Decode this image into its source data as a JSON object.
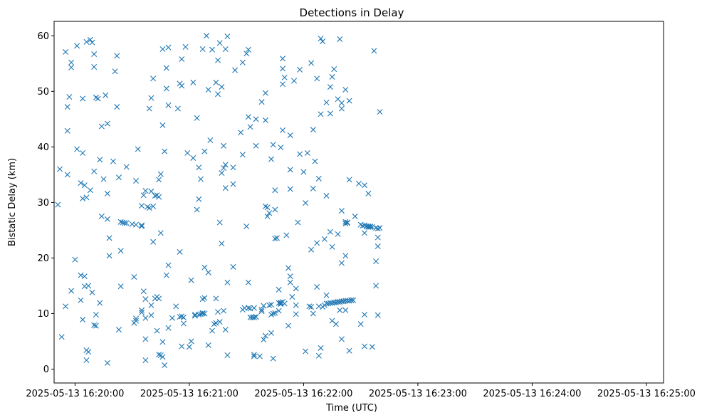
{
  "chart_data": {
    "type": "scatter",
    "title": "Detections in Delay",
    "xlabel": "Time (UTC)",
    "ylabel": "Bistatic Delay (km)",
    "marker": "x",
    "color": "#1f77b4",
    "grid": false,
    "x_unit": "time of day (UTC) on 2025-05-13, HH:MM:SS",
    "xlim": [
      "16:19:49",
      "16:25:09"
    ],
    "ylim": [
      -2.5,
      62.6
    ],
    "x_ticks": [
      "16:20:00",
      "16:21:00",
      "16:22:00",
      "16:23:00",
      "16:24:00",
      "16:25:00"
    ],
    "x_tick_labels": [
      "2025-05-13 16:20:00",
      "2025-05-13 16:21:00",
      "2025-05-13 16:22:00",
      "2025-05-13 16:23:00",
      "2025-05-13 16:24:00",
      "2025-05-13 16:25:00"
    ],
    "y_ticks": [
      0,
      10,
      20,
      30,
      40,
      50,
      60
    ],
    "points": [
      [
        "16:19:51",
        29.6
      ],
      [
        "16:19:52",
        36.0
      ],
      [
        "16:19:53",
        5.8
      ],
      [
        "16:19:55",
        57.1
      ],
      [
        "16:19:55",
        11.3
      ],
      [
        "16:19:56",
        47.2
      ],
      [
        "16:19:56",
        35.0
      ],
      [
        "16:19:56",
        42.9
      ],
      [
        "16:19:57",
        49.0
      ],
      [
        "16:19:58",
        55.2
      ],
      [
        "16:19:58",
        54.3
      ],
      [
        "16:19:58",
        14.1
      ],
      [
        "16:20:00",
        19.7
      ],
      [
        "16:20:01",
        58.2
      ],
      [
        "16:20:01",
        39.6
      ],
      [
        "16:20:03",
        33.5
      ],
      [
        "16:20:03",
        16.9
      ],
      [
        "16:20:03",
        12.4
      ],
      [
        "16:20:04",
        48.7
      ],
      [
        "16:20:04",
        38.9
      ],
      [
        "16:20:04",
        30.7
      ],
      [
        "16:20:04",
        8.9
      ],
      [
        "16:20:05",
        33.1
      ],
      [
        "16:20:05",
        16.7
      ],
      [
        "16:20:05",
        14.9
      ],
      [
        "16:20:06",
        58.9
      ],
      [
        "16:20:06",
        3.4
      ],
      [
        "16:20:06",
        1.6
      ],
      [
        "16:20:06",
        30.9
      ],
      [
        "16:20:07",
        15.0
      ],
      [
        "16:20:07",
        3.1
      ],
      [
        "16:20:08",
        59.3
      ],
      [
        "16:20:08",
        32.2
      ],
      [
        "16:20:09",
        13.8
      ],
      [
        "16:20:09",
        58.8
      ],
      [
        "16:20:10",
        56.7
      ],
      [
        "16:20:10",
        54.4
      ],
      [
        "16:20:10",
        35.6
      ],
      [
        "16:20:10",
        7.9
      ],
      [
        "16:20:11",
        48.9
      ],
      [
        "16:20:11",
        9.8
      ],
      [
        "16:20:11",
        7.8
      ],
      [
        "16:20:12",
        48.7
      ],
      [
        "16:20:13",
        37.7
      ],
      [
        "16:20:13",
        11.9
      ],
      [
        "16:20:14",
        43.7
      ],
      [
        "16:20:14",
        27.5
      ],
      [
        "16:20:15",
        34.2
      ],
      [
        "16:20:16",
        49.3
      ],
      [
        "16:20:17",
        44.2
      ],
      [
        "16:20:17",
        27.0
      ],
      [
        "16:20:17",
        1.1
      ],
      [
        "16:20:17",
        31.6
      ],
      [
        "16:20:18",
        23.6
      ],
      [
        "16:20:18",
        20.4
      ],
      [
        "16:20:20",
        37.4
      ],
      [
        "16:20:21",
        53.6
      ],
      [
        "16:20:22",
        56.4
      ],
      [
        "16:20:22",
        47.2
      ],
      [
        "16:20:23",
        34.5
      ],
      [
        "16:20:23",
        7.1
      ],
      [
        "16:20:24",
        26.5
      ],
      [
        "16:20:24",
        21.3
      ],
      [
        "16:20:24",
        14.9
      ],
      [
        "16:20:25",
        26.4
      ],
      [
        "16:20:26",
        26.3
      ],
      [
        "16:20:27",
        26.3
      ],
      [
        "16:20:27",
        36.4
      ],
      [
        "16:20:30",
        26.1
      ],
      [
        "16:20:31",
        16.6
      ],
      [
        "16:20:31",
        8.3
      ],
      [
        "16:20:32",
        8.7
      ],
      [
        "16:20:32",
        9.1
      ],
      [
        "16:20:32",
        33.9
      ],
      [
        "16:20:32",
        26.0
      ],
      [
        "16:20:33",
        39.6
      ],
      [
        "16:20:35",
        29.4
      ],
      [
        "16:20:35",
        25.9
      ],
      [
        "16:20:35",
        25.7
      ],
      [
        "16:20:35",
        10.6
      ],
      [
        "16:20:35",
        10.2
      ],
      [
        "16:20:36",
        31.3
      ],
      [
        "16:20:36",
        14.0
      ],
      [
        "16:20:37",
        32.1
      ],
      [
        "16:20:37",
        12.6
      ],
      [
        "16:20:37",
        9.2
      ],
      [
        "16:20:37",
        5.4
      ],
      [
        "16:20:37",
        1.6
      ],
      [
        "16:20:38",
        29.2
      ],
      [
        "16:20:39",
        46.9
      ],
      [
        "16:20:39",
        29.0
      ],
      [
        "16:20:40",
        48.8
      ],
      [
        "16:20:40",
        32.0
      ],
      [
        "16:20:40",
        11.5
      ],
      [
        "16:20:40",
        9.7
      ],
      [
        "16:20:41",
        52.3
      ],
      [
        "16:20:41",
        29.3
      ],
      [
        "16:20:41",
        22.9
      ],
      [
        "16:20:42",
        31.2
      ],
      [
        "16:20:42",
        12.7
      ],
      [
        "16:20:43",
        31.3
      ],
      [
        "16:20:43",
        13.0
      ],
      [
        "16:20:43",
        6.9
      ],
      [
        "16:20:44",
        34.1
      ],
      [
        "16:20:44",
        31.0
      ],
      [
        "16:20:44",
        12.7
      ],
      [
        "16:20:44",
        2.6
      ],
      [
        "16:20:45",
        35.1
      ],
      [
        "16:20:45",
        24.5
      ],
      [
        "16:20:45",
        2.5
      ],
      [
        "16:20:46",
        4.9
      ],
      [
        "16:20:46",
        57.6
      ],
      [
        "16:20:46",
        43.9
      ],
      [
        "16:20:46",
        2.2
      ],
      [
        "16:20:47",
        39.2
      ],
      [
        "16:20:47",
        0.7
      ],
      [
        "16:20:48",
        54.2
      ],
      [
        "16:20:48",
        50.5
      ],
      [
        "16:20:48",
        16.9
      ],
      [
        "16:20:49",
        57.9
      ],
      [
        "16:20:49",
        47.5
      ],
      [
        "16:20:49",
        18.7
      ],
      [
        "16:20:49",
        7.4
      ],
      [
        "16:20:51",
        9.2
      ],
      [
        "16:20:53",
        11.3
      ],
      [
        "16:20:54",
        46.9
      ],
      [
        "16:20:55",
        51.4
      ],
      [
        "16:20:55",
        21.1
      ],
      [
        "16:20:55",
        9.4
      ],
      [
        "16:20:56",
        55.8
      ],
      [
        "16:20:56",
        51.0
      ],
      [
        "16:20:56",
        9.5
      ],
      [
        "16:20:56",
        4.1
      ],
      [
        "16:20:57",
        8.2
      ],
      [
        "16:20:57",
        9.3
      ],
      [
        "16:20:58",
        58.0
      ],
      [
        "16:20:59",
        38.9
      ],
      [
        "16:21:00",
        4.0
      ],
      [
        "16:21:01",
        5.0
      ],
      [
        "16:21:01",
        16.0
      ],
      [
        "16:21:02",
        51.6
      ],
      [
        "16:21:02",
        38.0
      ],
      [
        "16:21:03",
        9.8
      ],
      [
        "16:21:03",
        9.6
      ],
      [
        "16:21:04",
        45.2
      ],
      [
        "16:21:04",
        28.7
      ],
      [
        "16:21:05",
        36.3
      ],
      [
        "16:21:05",
        30.6
      ],
      [
        "16:21:05",
        9.8
      ],
      [
        "16:21:06",
        34.2
      ],
      [
        "16:21:06",
        9.9
      ],
      [
        "16:21:07",
        57.6
      ],
      [
        "16:21:07",
        12.6
      ],
      [
        "16:21:07",
        10.1
      ],
      [
        "16:21:07",
        10.0
      ],
      [
        "16:21:08",
        39.2
      ],
      [
        "16:21:08",
        18.3
      ],
      [
        "16:21:08",
        12.8
      ],
      [
        "16:21:08",
        10.0
      ],
      [
        "16:21:09",
        60.0
      ],
      [
        "16:21:10",
        50.3
      ],
      [
        "16:21:10",
        4.3
      ],
      [
        "16:21:10",
        17.4
      ],
      [
        "16:21:11",
        41.2
      ],
      [
        "16:21:12",
        57.5
      ],
      [
        "16:21:12",
        6.9
      ],
      [
        "16:21:13",
        8.1
      ],
      [
        "16:21:14",
        8.3
      ],
      [
        "16:21:14",
        12.7
      ],
      [
        "16:21:14",
        51.6
      ],
      [
        "16:21:15",
        49.5
      ],
      [
        "16:21:15",
        55.6
      ],
      [
        "16:21:15",
        10.3
      ],
      [
        "16:21:16",
        26.4
      ],
      [
        "16:21:16",
        8.5
      ],
      [
        "16:21:16",
        58.7
      ],
      [
        "16:21:17",
        50.8
      ],
      [
        "16:21:17",
        22.6
      ],
      [
        "16:21:17",
        35.3
      ],
      [
        "16:21:18",
        10.5
      ],
      [
        "16:21:18",
        40.2
      ],
      [
        "16:21:18",
        36.2
      ],
      [
        "16:21:19",
        32.6
      ],
      [
        "16:21:19",
        36.8
      ],
      [
        "16:21:19",
        57.6
      ],
      [
        "16:21:19",
        7.1
      ],
      [
        "16:21:20",
        2.5
      ],
      [
        "16:21:20",
        59.9
      ],
      [
        "16:21:20",
        15.6
      ],
      [
        "16:21:23",
        33.3
      ],
      [
        "16:21:23",
        18.4
      ],
      [
        "16:21:23",
        36.3
      ],
      [
        "16:21:24",
        53.8
      ],
      [
        "16:21:27",
        42.6
      ],
      [
        "16:21:28",
        55.2
      ],
      [
        "16:21:28",
        38.6
      ],
      [
        "16:21:28",
        10.7
      ],
      [
        "16:21:29",
        11.0
      ],
      [
        "16:21:30",
        56.8
      ],
      [
        "16:21:30",
        25.7
      ],
      [
        "16:21:31",
        57.5
      ],
      [
        "16:21:31",
        45.4
      ],
      [
        "16:21:31",
        15.6
      ],
      [
        "16:21:31",
        11.0
      ],
      [
        "16:21:32",
        43.6
      ],
      [
        "16:21:32",
        9.3
      ],
      [
        "16:21:32",
        10.9
      ],
      [
        "16:21:33",
        9.3
      ],
      [
        "16:21:34",
        9.3
      ],
      [
        "16:21:34",
        2.6
      ],
      [
        "16:21:34",
        2.3
      ],
      [
        "16:21:34",
        11.0
      ],
      [
        "16:21:34",
        9.3
      ],
      [
        "16:21:35",
        45.0
      ],
      [
        "16:21:35",
        40.2
      ],
      [
        "16:21:35",
        9.4
      ],
      [
        "16:21:35",
        9.4
      ],
      [
        "16:21:37",
        2.3
      ],
      [
        "16:21:38",
        48.1
      ],
      [
        "16:21:38",
        10.4
      ],
      [
        "16:21:38",
        10.7
      ],
      [
        "16:21:39",
        11.4
      ],
      [
        "16:21:39",
        5.3
      ],
      [
        "16:21:40",
        44.8
      ],
      [
        "16:21:40",
        49.7
      ],
      [
        "16:21:40",
        29.3
      ],
      [
        "16:21:40",
        6.0
      ],
      [
        "16:21:41",
        29.1
      ],
      [
        "16:21:41",
        27.5
      ],
      [
        "16:21:42",
        11.5
      ],
      [
        "16:21:42",
        28.1
      ],
      [
        "16:21:43",
        37.8
      ],
      [
        "16:21:43",
        11.6
      ],
      [
        "16:21:43",
        9.8
      ],
      [
        "16:21:43",
        6.5
      ],
      [
        "16:21:44",
        40.4
      ],
      [
        "16:21:44",
        1.9
      ],
      [
        "16:21:44",
        10.0
      ],
      [
        "16:21:45",
        10.1
      ],
      [
        "16:21:45",
        32.2
      ],
      [
        "16:21:45",
        28.7
      ],
      [
        "16:21:45",
        23.5
      ],
      [
        "16:21:46",
        23.6
      ],
      [
        "16:21:47",
        14.3
      ],
      [
        "16:21:47",
        10.5
      ],
      [
        "16:21:47",
        11.9
      ],
      [
        "16:21:48",
        39.9
      ],
      [
        "16:21:48",
        12.0
      ],
      [
        "16:21:48",
        11.7
      ],
      [
        "16:21:48",
        11.8
      ],
      [
        "16:21:49",
        54.1
      ],
      [
        "16:21:49",
        51.3
      ],
      [
        "16:21:49",
        55.9
      ],
      [
        "16:21:49",
        43.0
      ],
      [
        "16:21:49",
        12.1
      ],
      [
        "16:21:50",
        52.5
      ],
      [
        "16:21:50",
        11.8
      ],
      [
        "16:21:51",
        24.1
      ],
      [
        "16:21:52",
        7.8
      ],
      [
        "16:21:52",
        18.2
      ],
      [
        "16:21:53",
        16.7
      ],
      [
        "16:21:53",
        35.9
      ],
      [
        "16:21:53",
        32.4
      ],
      [
        "16:21:53",
        42.1
      ],
      [
        "16:21:53",
        15.6
      ],
      [
        "16:21:54",
        13.0
      ],
      [
        "16:21:55",
        51.9
      ],
      [
        "16:21:56",
        11.5
      ],
      [
        "16:21:56",
        9.9
      ],
      [
        "16:21:56",
        14.5
      ],
      [
        "16:21:57",
        26.4
      ],
      [
        "16:21:58",
        53.9
      ],
      [
        "16:21:58",
        38.7
      ],
      [
        "16:22:00",
        35.5
      ],
      [
        "16:22:01",
        29.9
      ],
      [
        "16:22:01",
        3.2
      ],
      [
        "16:22:02",
        38.9
      ],
      [
        "16:22:03",
        11.3
      ],
      [
        "16:22:04",
        11.2
      ],
      [
        "16:22:04",
        21.5
      ],
      [
        "16:22:04",
        55.1
      ],
      [
        "16:22:05",
        43.1
      ],
      [
        "16:22:05",
        32.5
      ],
      [
        "16:22:05",
        10.0
      ],
      [
        "16:22:06",
        37.4
      ],
      [
        "16:22:07",
        52.3
      ],
      [
        "16:22:07",
        22.7
      ],
      [
        "16:22:07",
        14.8
      ],
      [
        "16:22:08",
        2.4
      ],
      [
        "16:22:08",
        11.3
      ],
      [
        "16:22:08",
        34.3
      ],
      [
        "16:22:09",
        45.9
      ],
      [
        "16:22:09",
        59.5
      ],
      [
        "16:22:09",
        3.8
      ],
      [
        "16:22:10",
        11.2
      ],
      [
        "16:22:10",
        59.0
      ],
      [
        "16:22:11",
        23.4
      ],
      [
        "16:22:11",
        11.5
      ],
      [
        "16:22:12",
        13.3
      ],
      [
        "16:22:12",
        31.2
      ],
      [
        "16:22:12",
        48.0
      ],
      [
        "16:22:12",
        11.8
      ],
      [
        "16:22:13",
        11.8
      ],
      [
        "16:22:14",
        24.7
      ],
      [
        "16:22:14",
        46.0
      ],
      [
        "16:22:14",
        50.8
      ],
      [
        "16:22:14",
        11.9
      ],
      [
        "16:22:15",
        11.9
      ],
      [
        "16:22:15",
        22.0
      ],
      [
        "16:22:15",
        52.6
      ],
      [
        "16:22:15",
        8.7
      ],
      [
        "16:22:16",
        12.0
      ],
      [
        "16:22:16",
        54.0
      ],
      [
        "16:22:16",
        12.0
      ],
      [
        "16:22:17",
        8.1
      ],
      [
        "16:22:17",
        12.0
      ],
      [
        "16:22:18",
        12.1
      ],
      [
        "16:22:18",
        24.3
      ],
      [
        "16:22:18",
        48.6
      ],
      [
        "16:22:18",
        12.1
      ],
      [
        "16:22:19",
        12.1
      ],
      [
        "16:22:19",
        59.4
      ],
      [
        "16:22:19",
        12.1
      ],
      [
        "16:22:19",
        10.6
      ],
      [
        "16:22:20",
        19.1
      ],
      [
        "16:22:20",
        47.9
      ],
      [
        "16:22:20",
        46.9
      ],
      [
        "16:22:20",
        28.5
      ],
      [
        "16:22:20",
        12.2
      ],
      [
        "16:22:20",
        5.4
      ],
      [
        "16:22:21",
        12.2
      ],
      [
        "16:22:21",
        12.2
      ],
      [
        "16:22:22",
        20.4
      ],
      [
        "16:22:22",
        26.5
      ],
      [
        "16:22:22",
        50.3
      ],
      [
        "16:22:22",
        26.2
      ],
      [
        "16:22:22",
        12.3
      ],
      [
        "16:22:22",
        10.6
      ],
      [
        "16:22:23",
        26.3
      ],
      [
        "16:22:23",
        26.4
      ],
      [
        "16:22:23",
        12.3
      ],
      [
        "16:22:24",
        12.3
      ],
      [
        "16:22:24",
        48.3
      ],
      [
        "16:22:24",
        34.1
      ],
      [
        "16:22:24",
        3.3
      ],
      [
        "16:22:25",
        12.4
      ],
      [
        "16:22:25",
        12.4
      ],
      [
        "16:22:26",
        12.4
      ],
      [
        "16:22:26",
        12.4
      ],
      [
        "16:22:27",
        27.5
      ],
      [
        "16:22:29",
        33.4
      ],
      [
        "16:22:30",
        8.1
      ],
      [
        "16:22:30",
        26.0
      ],
      [
        "16:22:31",
        25.8
      ],
      [
        "16:22:32",
        25.9
      ],
      [
        "16:22:32",
        4.1
      ],
      [
        "16:22:32",
        33.1
      ],
      [
        "16:22:32",
        9.8
      ],
      [
        "16:22:32",
        24.5
      ],
      [
        "16:22:33",
        25.7
      ],
      [
        "16:22:33",
        25.7
      ],
      [
        "16:22:34",
        25.7
      ],
      [
        "16:22:34",
        31.6
      ],
      [
        "16:22:34",
        25.6
      ],
      [
        "16:22:35",
        25.6
      ],
      [
        "16:22:35",
        25.7
      ],
      [
        "16:22:35",
        25.6
      ],
      [
        "16:22:36",
        4.0
      ],
      [
        "16:22:36",
        25.6
      ],
      [
        "16:22:37",
        57.3
      ],
      [
        "16:22:38",
        15.0
      ],
      [
        "16:22:38",
        19.4
      ],
      [
        "16:22:38",
        25.4
      ],
      [
        "16:22:39",
        23.7
      ],
      [
        "16:22:39",
        22.1
      ],
      [
        "16:22:39",
        9.7
      ],
      [
        "16:22:39",
        25.3
      ],
      [
        "16:22:40",
        25.4
      ],
      [
        "16:22:40",
        46.3
      ]
    ]
  }
}
